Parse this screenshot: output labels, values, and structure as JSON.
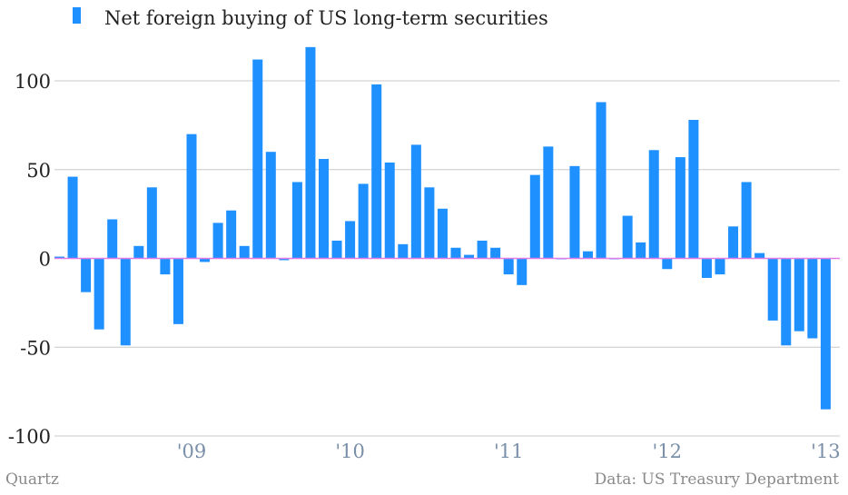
{
  "chart_data": {
    "type": "bar",
    "title": "",
    "xlabel": "",
    "ylabel": "",
    "ylim": [
      -100,
      120
    ],
    "yticks": [
      100,
      50,
      0,
      -50,
      -100
    ],
    "ytick_labels": [
      "100",
      "50",
      "0",
      "-50",
      "-100"
    ],
    "xtick_labels": [
      "'09",
      "'10",
      "'11",
      "'12",
      "'13"
    ],
    "xtick_bar_index": [
      10,
      22,
      34,
      46,
      58
    ],
    "series": [
      {
        "name": "Net foreign buying of US long-term securities",
        "color": "#1e90ff",
        "values": [
          1,
          46,
          -19,
          -40,
          22,
          -49,
          7,
          40,
          -9,
          -37,
          70,
          -2,
          20,
          27,
          7,
          112,
          60,
          -1,
          43,
          119,
          56,
          10,
          21,
          42,
          98,
          54,
          8,
          64,
          40,
          28,
          6,
          2,
          10,
          6,
          -9,
          -15,
          47,
          63,
          0,
          52,
          4,
          88,
          0,
          24,
          9,
          61,
          -6,
          57,
          78,
          -11,
          -9,
          18,
          43,
          3,
          -35,
          -49,
          -41,
          -45,
          -85
        ]
      }
    ]
  },
  "legend": {
    "label": "Net foreign buying of US long-term securities"
  },
  "footer": {
    "source_left": "Quartz",
    "source_right": "Data: US Treasury Department"
  }
}
